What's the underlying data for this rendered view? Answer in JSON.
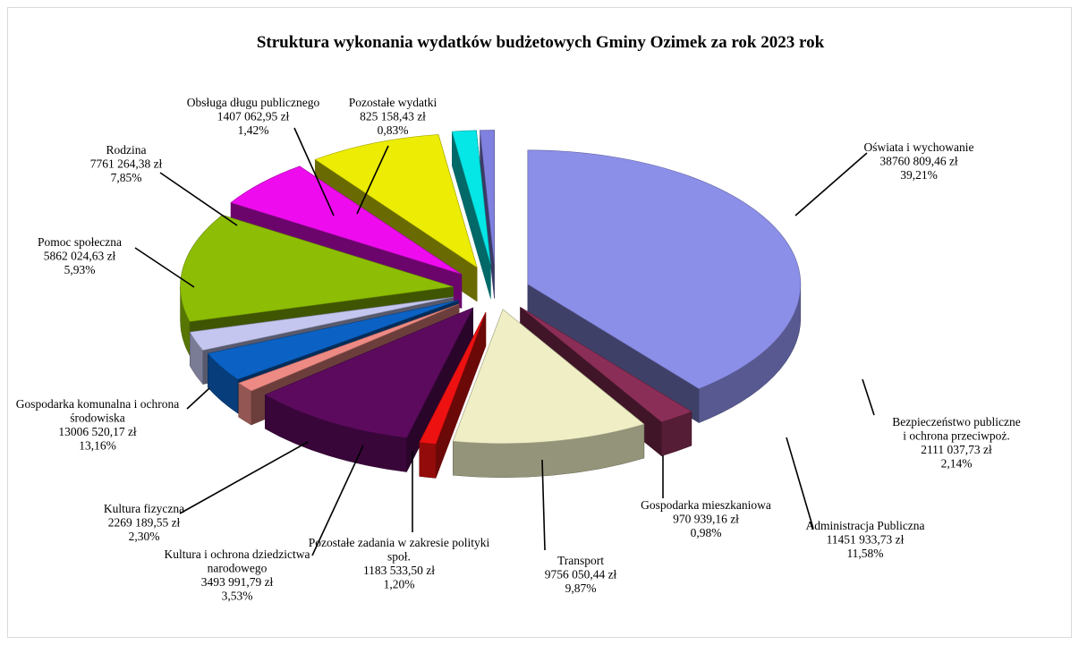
{
  "chart_data": {
    "type": "pie",
    "style": "3d-exploded",
    "title": "Struktura wykonania wydatków budżetowych Gminy Ozimek za rok 2023 rok",
    "unit": "zł",
    "slices": [
      {
        "name": "Oświata i wychowanie",
        "value": "38760 809,46 zł",
        "percent": "39,21%",
        "amount": 38760809.46,
        "share": 39.21,
        "color": "#8c8fe8"
      },
      {
        "name": "Bezpieczeństwo publiczne i ochrona przeciwpoż.",
        "name_lines": [
          "Bezpieczeństwo publiczne",
          "i ochrona przeciwpoż."
        ],
        "value": "2111 037,73 zł",
        "percent": "2,14%",
        "amount": 2111037.73,
        "share": 2.14,
        "color": "#8b2e57"
      },
      {
        "name": "Administracja Publiczna",
        "value": "11451 933,73 zł",
        "percent": "11,58%",
        "amount": 11451933.73,
        "share": 11.58,
        "color": "#efeec4"
      },
      {
        "name": "Gospodarka mieszkaniowa",
        "value": "970 939,16 zł",
        "percent": "0,98%",
        "amount": 970939.16,
        "share": 0.98,
        "color": "#ee1111"
      },
      {
        "name": "Transport",
        "value": "9756 050,44 zł",
        "percent": "9,87%",
        "amount": 9756050.44,
        "share": 9.87,
        "color": "#5c0a5e"
      },
      {
        "name": "Pozostałe zadania w zakresie polityki społ.",
        "name_lines": [
          "Pozostałe zadania w zakresie polityki",
          "społ."
        ],
        "value": "1183 533,50 zł",
        "percent": "1,20%",
        "amount": 1183533.5,
        "share": 1.2,
        "color": "#ee8a84"
      },
      {
        "name": "Kultura i ochrona dziedzictwa narodowego",
        "name_lines": [
          "Kultura i ochrona dziedzictwa",
          "narodowego"
        ],
        "value": "3493 991,79 zł",
        "percent": "3,53%",
        "amount": 3493991.79,
        "share": 3.53,
        "color": "#0b62c4"
      },
      {
        "name": "Kultura fizyczna",
        "value": "2269 189,55 zł",
        "percent": "2,30%",
        "amount": 2269189.55,
        "share": 2.3,
        "color": "#c4c6ef"
      },
      {
        "name": "Gospodarka komunalna i ochrona środowiska",
        "name_lines": [
          "Gospodarka komunalna i ochrona",
          "środowiska"
        ],
        "value": "13006 520,17 zł",
        "percent": "13,16%",
        "amount": 13006520.17,
        "share": 13.16,
        "color": "#8dbd05"
      },
      {
        "name": "Pomoc społeczna",
        "value": "5862 024,63 zł",
        "percent": "5,93%",
        "amount": 5862024.63,
        "share": 5.93,
        "color": "#ee0cee"
      },
      {
        "name": "Rodzina",
        "value": "7761 264,38 zł",
        "percent": "7,85%",
        "amount": 7761264.38,
        "share": 7.85,
        "color": "#ecec04"
      },
      {
        "name": "Obsługa długu publicznego",
        "value": "1407 062,95 zł",
        "percent": "1,42%",
        "amount": 1407062.95,
        "share": 1.42,
        "color": "#05e6e6"
      },
      {
        "name": "Pozostałe wydatki",
        "value": "825 158,43 zł",
        "percent": "0,83%",
        "amount": 825158.43,
        "share": 0.83,
        "color": "#8080e0"
      }
    ]
  }
}
